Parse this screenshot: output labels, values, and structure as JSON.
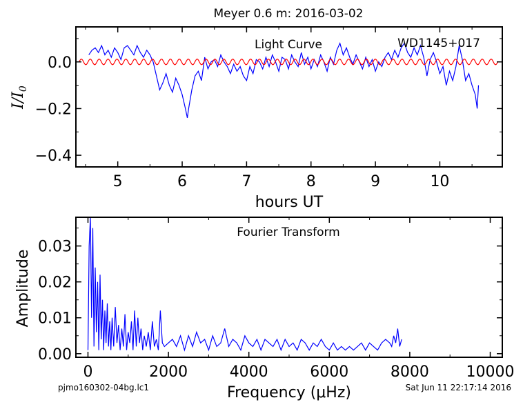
{
  "page": {
    "title": "Meyer 0.6 m:  2016-03-02",
    "footer_left": "pjmo160302-04bg.lc1",
    "footer_right": "Sat Jun 11 22:17:14 2016"
  },
  "colors": {
    "data": "#0000ff",
    "fit": "#ff0000",
    "axes": "#000000"
  },
  "chart_data": [
    {
      "id": "light-curve",
      "type": "line",
      "annotation_left": "Light Curve",
      "annotation_right": "WD1145+017",
      "xlabel": "hours UT",
      "ylabel": "I/I0",
      "xlim": [
        4.35,
        10.97
      ],
      "ylim": [
        -0.45,
        0.15
      ],
      "xticks": [
        5,
        6,
        7,
        8,
        9,
        10
      ],
      "xtick_labels": [
        "5",
        "6",
        "7",
        "8",
        "9",
        "10"
      ],
      "yticks": [
        0.0,
        -0.2,
        -0.4
      ],
      "ytick_labels": [
        "0.0",
        "−0.2",
        "−0.4"
      ],
      "grid": false,
      "series": [
        {
          "role": "data",
          "x": [
            4.55,
            4.6,
            4.65,
            4.7,
            4.75,
            4.8,
            4.85,
            4.9,
            4.95,
            5.0,
            5.05,
            5.1,
            5.15,
            5.2,
            5.25,
            5.3,
            5.35,
            5.4,
            5.45,
            5.5,
            5.55,
            5.6,
            5.65,
            5.7,
            5.75,
            5.8,
            5.85,
            5.9,
            5.95,
            6.0,
            6.05,
            6.08,
            6.1,
            6.15,
            6.2,
            6.25,
            6.3,
            6.35,
            6.4,
            6.45,
            6.5,
            6.55,
            6.6,
            6.65,
            6.7,
            6.75,
            6.8,
            6.85,
            6.9,
            6.95,
            7.0,
            7.05,
            7.1,
            7.15,
            7.2,
            7.25,
            7.3,
            7.35,
            7.4,
            7.45,
            7.5,
            7.55,
            7.6,
            7.65,
            7.7,
            7.75,
            7.8,
            7.85,
            7.9,
            7.95,
            8.0,
            8.05,
            8.1,
            8.15,
            8.2,
            8.25,
            8.3,
            8.35,
            8.4,
            8.45,
            8.5,
            8.55,
            8.6,
            8.65,
            8.7,
            8.75,
            8.8,
            8.85,
            8.9,
            8.95,
            9.0,
            9.05,
            9.1,
            9.15,
            9.2,
            9.25,
            9.3,
            9.35,
            9.4,
            9.45,
            9.5,
            9.55,
            9.6,
            9.65,
            9.7,
            9.75,
            9.8,
            9.85,
            9.9,
            9.95,
            10.0,
            10.05,
            10.1,
            10.15,
            10.2,
            10.25,
            10.3,
            10.35,
            10.4,
            10.45,
            10.5,
            10.55,
            10.58,
            10.6
          ],
          "y": [
            0.03,
            0.05,
            0.06,
            0.04,
            0.07,
            0.03,
            0.05,
            0.02,
            0.06,
            0.04,
            0.01,
            0.06,
            0.07,
            0.05,
            0.03,
            0.07,
            0.04,
            0.02,
            0.05,
            0.03,
            0.0,
            -0.06,
            -0.12,
            -0.09,
            -0.05,
            -0.1,
            -0.13,
            -0.07,
            -0.1,
            -0.14,
            -0.2,
            -0.24,
            -0.2,
            -0.12,
            -0.06,
            -0.04,
            -0.08,
            0.02,
            -0.03,
            0.0,
            0.01,
            -0.02,
            0.03,
            0.0,
            -0.02,
            -0.05,
            -0.01,
            -0.04,
            -0.02,
            -0.06,
            -0.08,
            -0.02,
            -0.05,
            0.01,
            0.0,
            -0.03,
            0.02,
            -0.02,
            0.03,
            0.0,
            -0.04,
            0.02,
            0.01,
            -0.03,
            0.03,
            0.0,
            -0.02,
            0.04,
            -0.01,
            0.02,
            -0.03,
            0.01,
            -0.02,
            0.03,
            0.0,
            -0.04,
            0.02,
            -0.01,
            0.05,
            0.08,
            0.03,
            0.06,
            0.02,
            -0.01,
            0.03,
            0.0,
            -0.03,
            0.02,
            -0.02,
            0.01,
            -0.04,
            0.0,
            -0.02,
            0.02,
            0.04,
            0.01,
            0.05,
            0.02,
            0.06,
            0.08,
            0.04,
            0.02,
            0.06,
            0.03,
            0.07,
            0.02,
            -0.06,
            0.01,
            0.04,
            0.0,
            -0.05,
            -0.02,
            -0.1,
            -0.04,
            -0.08,
            -0.02,
            0.07,
            0.01,
            -0.08,
            -0.05,
            -0.1,
            -0.14,
            -0.2,
            -0.1
          ]
        },
        {
          "role": "fit",
          "sinusoid_amplitude": 0.012,
          "sinusoid_cycles": 47,
          "x_range": [
            4.4,
            10.9
          ]
        }
      ]
    },
    {
      "id": "fourier",
      "type": "line",
      "annotation": "Fourier Transform",
      "xlabel": "Frequency (μHz)",
      "ylabel": "Amplitude",
      "xlim": [
        -300,
        10300
      ],
      "ylim": [
        -0.001,
        0.038
      ],
      "xticks": [
        0,
        2000,
        4000,
        6000,
        8000,
        10000
      ],
      "xtick_labels": [
        "0",
        "2000",
        "4000",
        "6000",
        "8000",
        "10000"
      ],
      "yticks": [
        0.0,
        0.01,
        0.02,
        0.03
      ],
      "ytick_labels": [
        "0.00",
        "0.01",
        "0.02",
        "0.03"
      ],
      "grid": false,
      "series": [
        {
          "role": "data",
          "x": [
            0,
            30,
            60,
            90,
            120,
            150,
            180,
            210,
            240,
            270,
            300,
            330,
            360,
            390,
            420,
            450,
            480,
            510,
            540,
            570,
            600,
            640,
            680,
            720,
            760,
            800,
            840,
            880,
            920,
            960,
            1000,
            1040,
            1080,
            1120,
            1160,
            1200,
            1240,
            1280,
            1320,
            1360,
            1400,
            1450,
            1500,
            1550,
            1600,
            1650,
            1700,
            1750,
            1800,
            1850,
            1900,
            2000,
            2100,
            2200,
            2300,
            2400,
            2500,
            2600,
            2700,
            2800,
            2900,
            3000,
            3100,
            3200,
            3300,
            3400,
            3500,
            3600,
            3700,
            3800,
            3900,
            4000,
            4100,
            4200,
            4300,
            4400,
            4500,
            4600,
            4700,
            4800,
            4900,
            5000,
            5100,
            5200,
            5300,
            5400,
            5500,
            5600,
            5700,
            5800,
            5900,
            6000,
            6100,
            6200,
            6300,
            6400,
            6500,
            6600,
            6700,
            6800,
            6900,
            7000,
            7100,
            7200,
            7300,
            7400,
            7500,
            7550,
            7600,
            7650,
            7700,
            7750,
            7800
          ],
          "y": [
            0.001,
            0.03,
            0.038,
            0.01,
            0.035,
            0.002,
            0.024,
            0.006,
            0.02,
            0.001,
            0.022,
            0.004,
            0.015,
            0.001,
            0.012,
            0.003,
            0.014,
            0.002,
            0.009,
            0.001,
            0.01,
            0.002,
            0.013,
            0.003,
            0.008,
            0.001,
            0.007,
            0.002,
            0.011,
            0.001,
            0.006,
            0.003,
            0.009,
            0.001,
            0.012,
            0.002,
            0.01,
            0.003,
            0.007,
            0.001,
            0.005,
            0.002,
            0.006,
            0.001,
            0.009,
            0.002,
            0.004,
            0.001,
            0.012,
            0.003,
            0.002,
            0.003,
            0.004,
            0.002,
            0.005,
            0.001,
            0.005,
            0.002,
            0.006,
            0.003,
            0.004,
            0.001,
            0.005,
            0.002,
            0.003,
            0.007,
            0.002,
            0.004,
            0.003,
            0.001,
            0.005,
            0.003,
            0.002,
            0.004,
            0.001,
            0.004,
            0.003,
            0.002,
            0.004,
            0.001,
            0.004,
            0.002,
            0.003,
            0.001,
            0.004,
            0.003,
            0.001,
            0.003,
            0.002,
            0.004,
            0.002,
            0.001,
            0.003,
            0.001,
            0.002,
            0.001,
            0.002,
            0.001,
            0.002,
            0.003,
            0.001,
            0.003,
            0.002,
            0.001,
            0.003,
            0.004,
            0.003,
            0.002,
            0.005,
            0.003,
            0.007,
            0.002,
            0.004
          ]
        }
      ]
    }
  ]
}
